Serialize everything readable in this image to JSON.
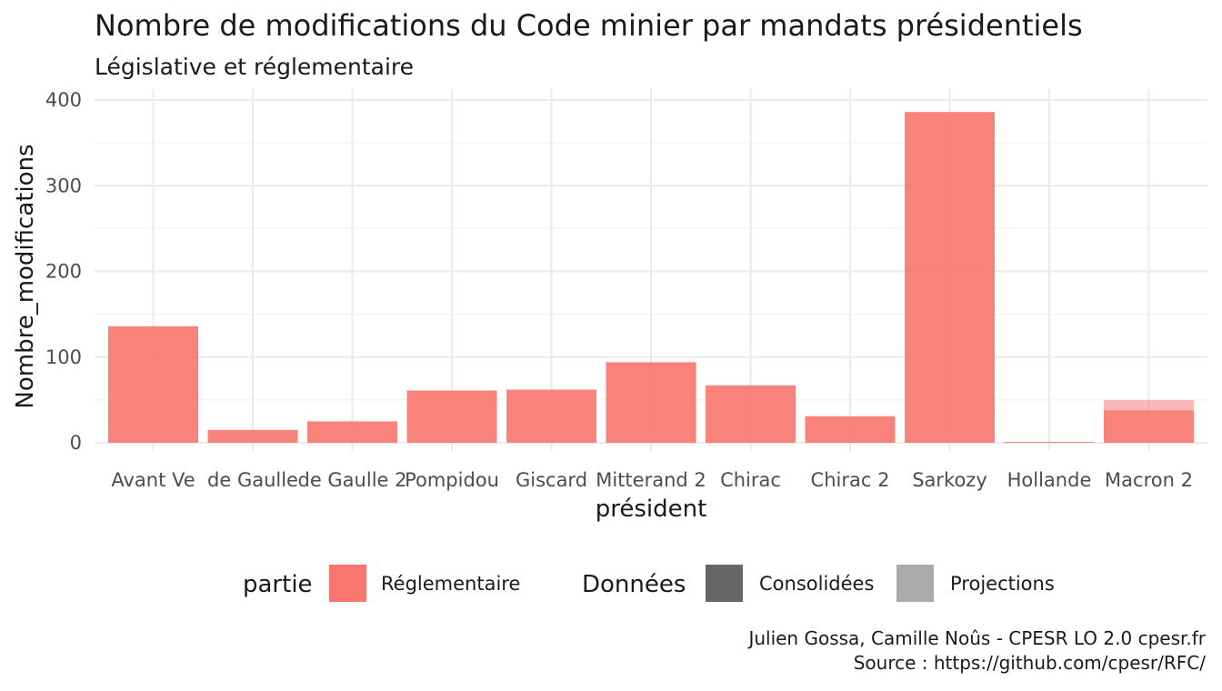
{
  "chart_data": {
    "type": "bar",
    "title": "Nombre de modifications du Code minier par mandats présidentiels",
    "subtitle": "Législative et réglementaire",
    "xlabel": "président",
    "ylabel": "Nombre_modifications",
    "ylim": [
      0,
      400
    ],
    "yticks": [
      0,
      100,
      200,
      300,
      400
    ],
    "grid": true,
    "categories": [
      "Avant Ve",
      "de Gaulle",
      "de Gaulle 2",
      "Pompidou",
      "Giscard",
      "Mitterand 2",
      "Chirac",
      "Chirac 2",
      "Sarkozy",
      "Hollande",
      "Macron 2"
    ],
    "series": [
      {
        "name": "Consolidées",
        "partie": "Réglementaire",
        "values": [
          136,
          15,
          25,
          61,
          62,
          94,
          67,
          31,
          386,
          1,
          38
        ]
      },
      {
        "name": "Projections",
        "partie": "Réglementaire",
        "values": [
          0,
          0,
          0,
          0,
          0,
          0,
          0,
          0,
          0,
          0,
          12
        ]
      }
    ],
    "legend": {
      "position": "bottom",
      "groups": [
        {
          "title": "partie",
          "items": [
            {
              "label": "Réglementaire",
              "color": "#f8766d"
            }
          ]
        },
        {
          "title": "Données",
          "items": [
            {
              "label": "Consolidées",
              "color": "#666666"
            },
            {
              "label": "Projections",
              "color": "#aaaaaa"
            }
          ]
        }
      ]
    },
    "colors": {
      "reglementaire": "#f8766d",
      "consolidees_alpha": 0.9,
      "projections_alpha": 0.5
    },
    "caption": [
      "Julien Gossa, Camille Noûs - CPESR LO 2.0 cpesr.fr",
      "Source : https://github.com/cpesr/RFC/"
    ]
  }
}
